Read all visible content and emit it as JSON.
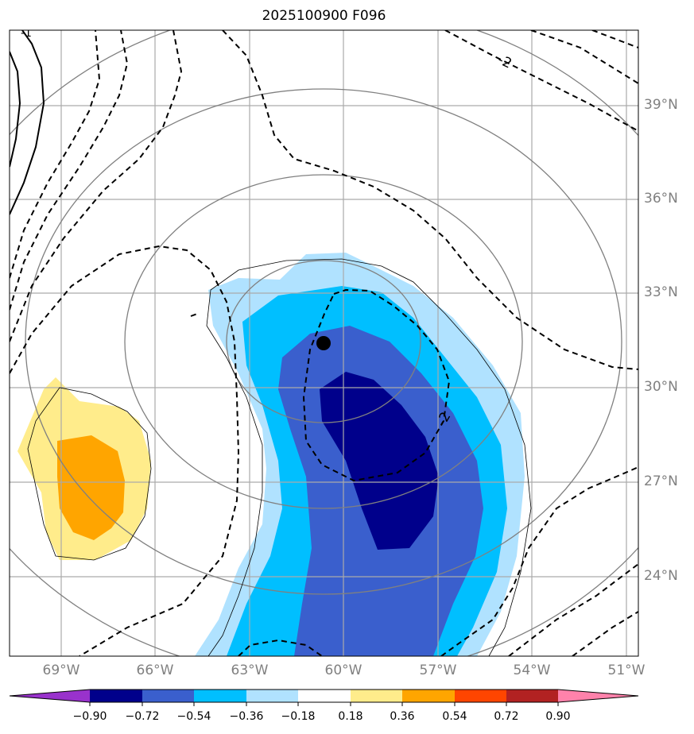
{
  "title": "2025100900 F096",
  "lat_labels": [
    "39°N",
    "36°N",
    "33°N",
    "30°N",
    "27°N",
    "24°N"
  ],
  "lon_labels": [
    "69°W",
    "66°W",
    "63°W",
    "60°W",
    "57°W",
    "54°W",
    "51°W"
  ],
  "contour_labels": [
    "-2",
    "-2",
    "-1"
  ],
  "colorbar": {
    "ticks": [
      "−0.90",
      "−0.72",
      "−0.54",
      "−0.36",
      "−0.18",
      "0.18",
      "0.36",
      "0.54",
      "0.72",
      "0.90"
    ],
    "colors": [
      "#9932cc",
      "#00008b",
      "#3a5fcd",
      "#00bfff",
      "#b0e2ff",
      "#ffffff",
      "#ffec8b",
      "#ffa500",
      "#ff4500",
      "#b22222",
      "#ff82ab"
    ]
  },
  "center_marker": "storm-center-dot"
}
